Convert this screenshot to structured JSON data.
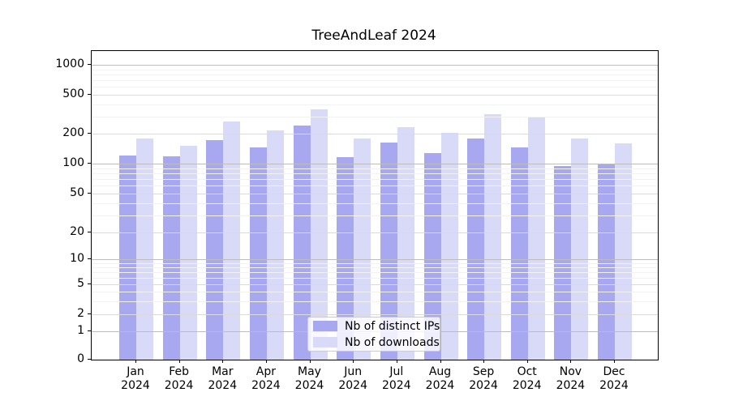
{
  "chart_data": {
    "type": "bar",
    "title": "TreeAndLeaf 2024",
    "categories": [
      "Jan",
      "Feb",
      "Mar",
      "Apr",
      "May",
      "Jun",
      "Jul",
      "Aug",
      "Sep",
      "Oct",
      "Nov",
      "Dec"
    ],
    "year": "2024",
    "series": [
      {
        "name": "Nb of distinct IPs",
        "color": "#a8a8f0",
        "values": [
          120,
          118,
          173,
          146,
          242,
          116,
          163,
          127,
          178,
          145,
          94,
          98
        ]
      },
      {
        "name": "Nb of downloads",
        "color": "#d9d9f8",
        "values": [
          178,
          150,
          265,
          216,
          352,
          180,
          235,
          205,
          316,
          296,
          178,
          160
        ]
      }
    ],
    "yticks": [
      0,
      1,
      2,
      5,
      10,
      20,
      50,
      100,
      200,
      500,
      1000
    ],
    "ylabel": "",
    "xlabel": "",
    "yscale": "symlog",
    "ylim": [
      0,
      1500
    ],
    "grid": true,
    "legend_position": "lower-center"
  }
}
